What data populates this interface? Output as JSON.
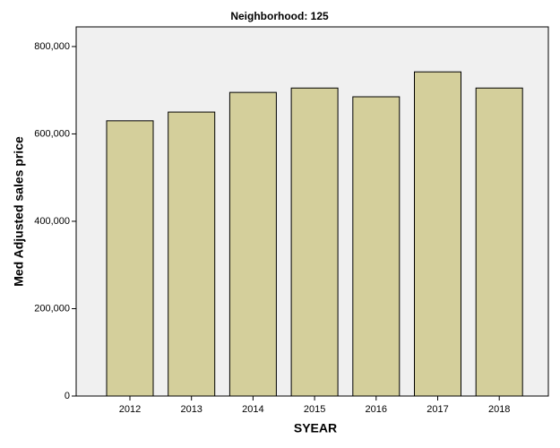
{
  "chart_data": {
    "type": "bar",
    "title": "Neighborhood: 125",
    "x_label": "SYEAR",
    "y_label": "Med Adjusted sales price",
    "categories": [
      "2012",
      "2013",
      "2014",
      "2015",
      "2016",
      "2017",
      "2018"
    ],
    "values": [
      630000,
      650000,
      695000,
      705000,
      685000,
      742000,
      705000
    ],
    "color": "#d4cf9b",
    "ylim": [
      0,
      845000
    ],
    "yticks": [
      0,
      {
        "value": 200000,
        "label": "200,000"
      },
      {
        "value": 400000,
        "label": "400,000"
      },
      {
        "value": 600000,
        "label": "600,000"
      },
      {
        "value": 800000,
        "label": "800,000"
      }
    ],
    "grid": false
  }
}
